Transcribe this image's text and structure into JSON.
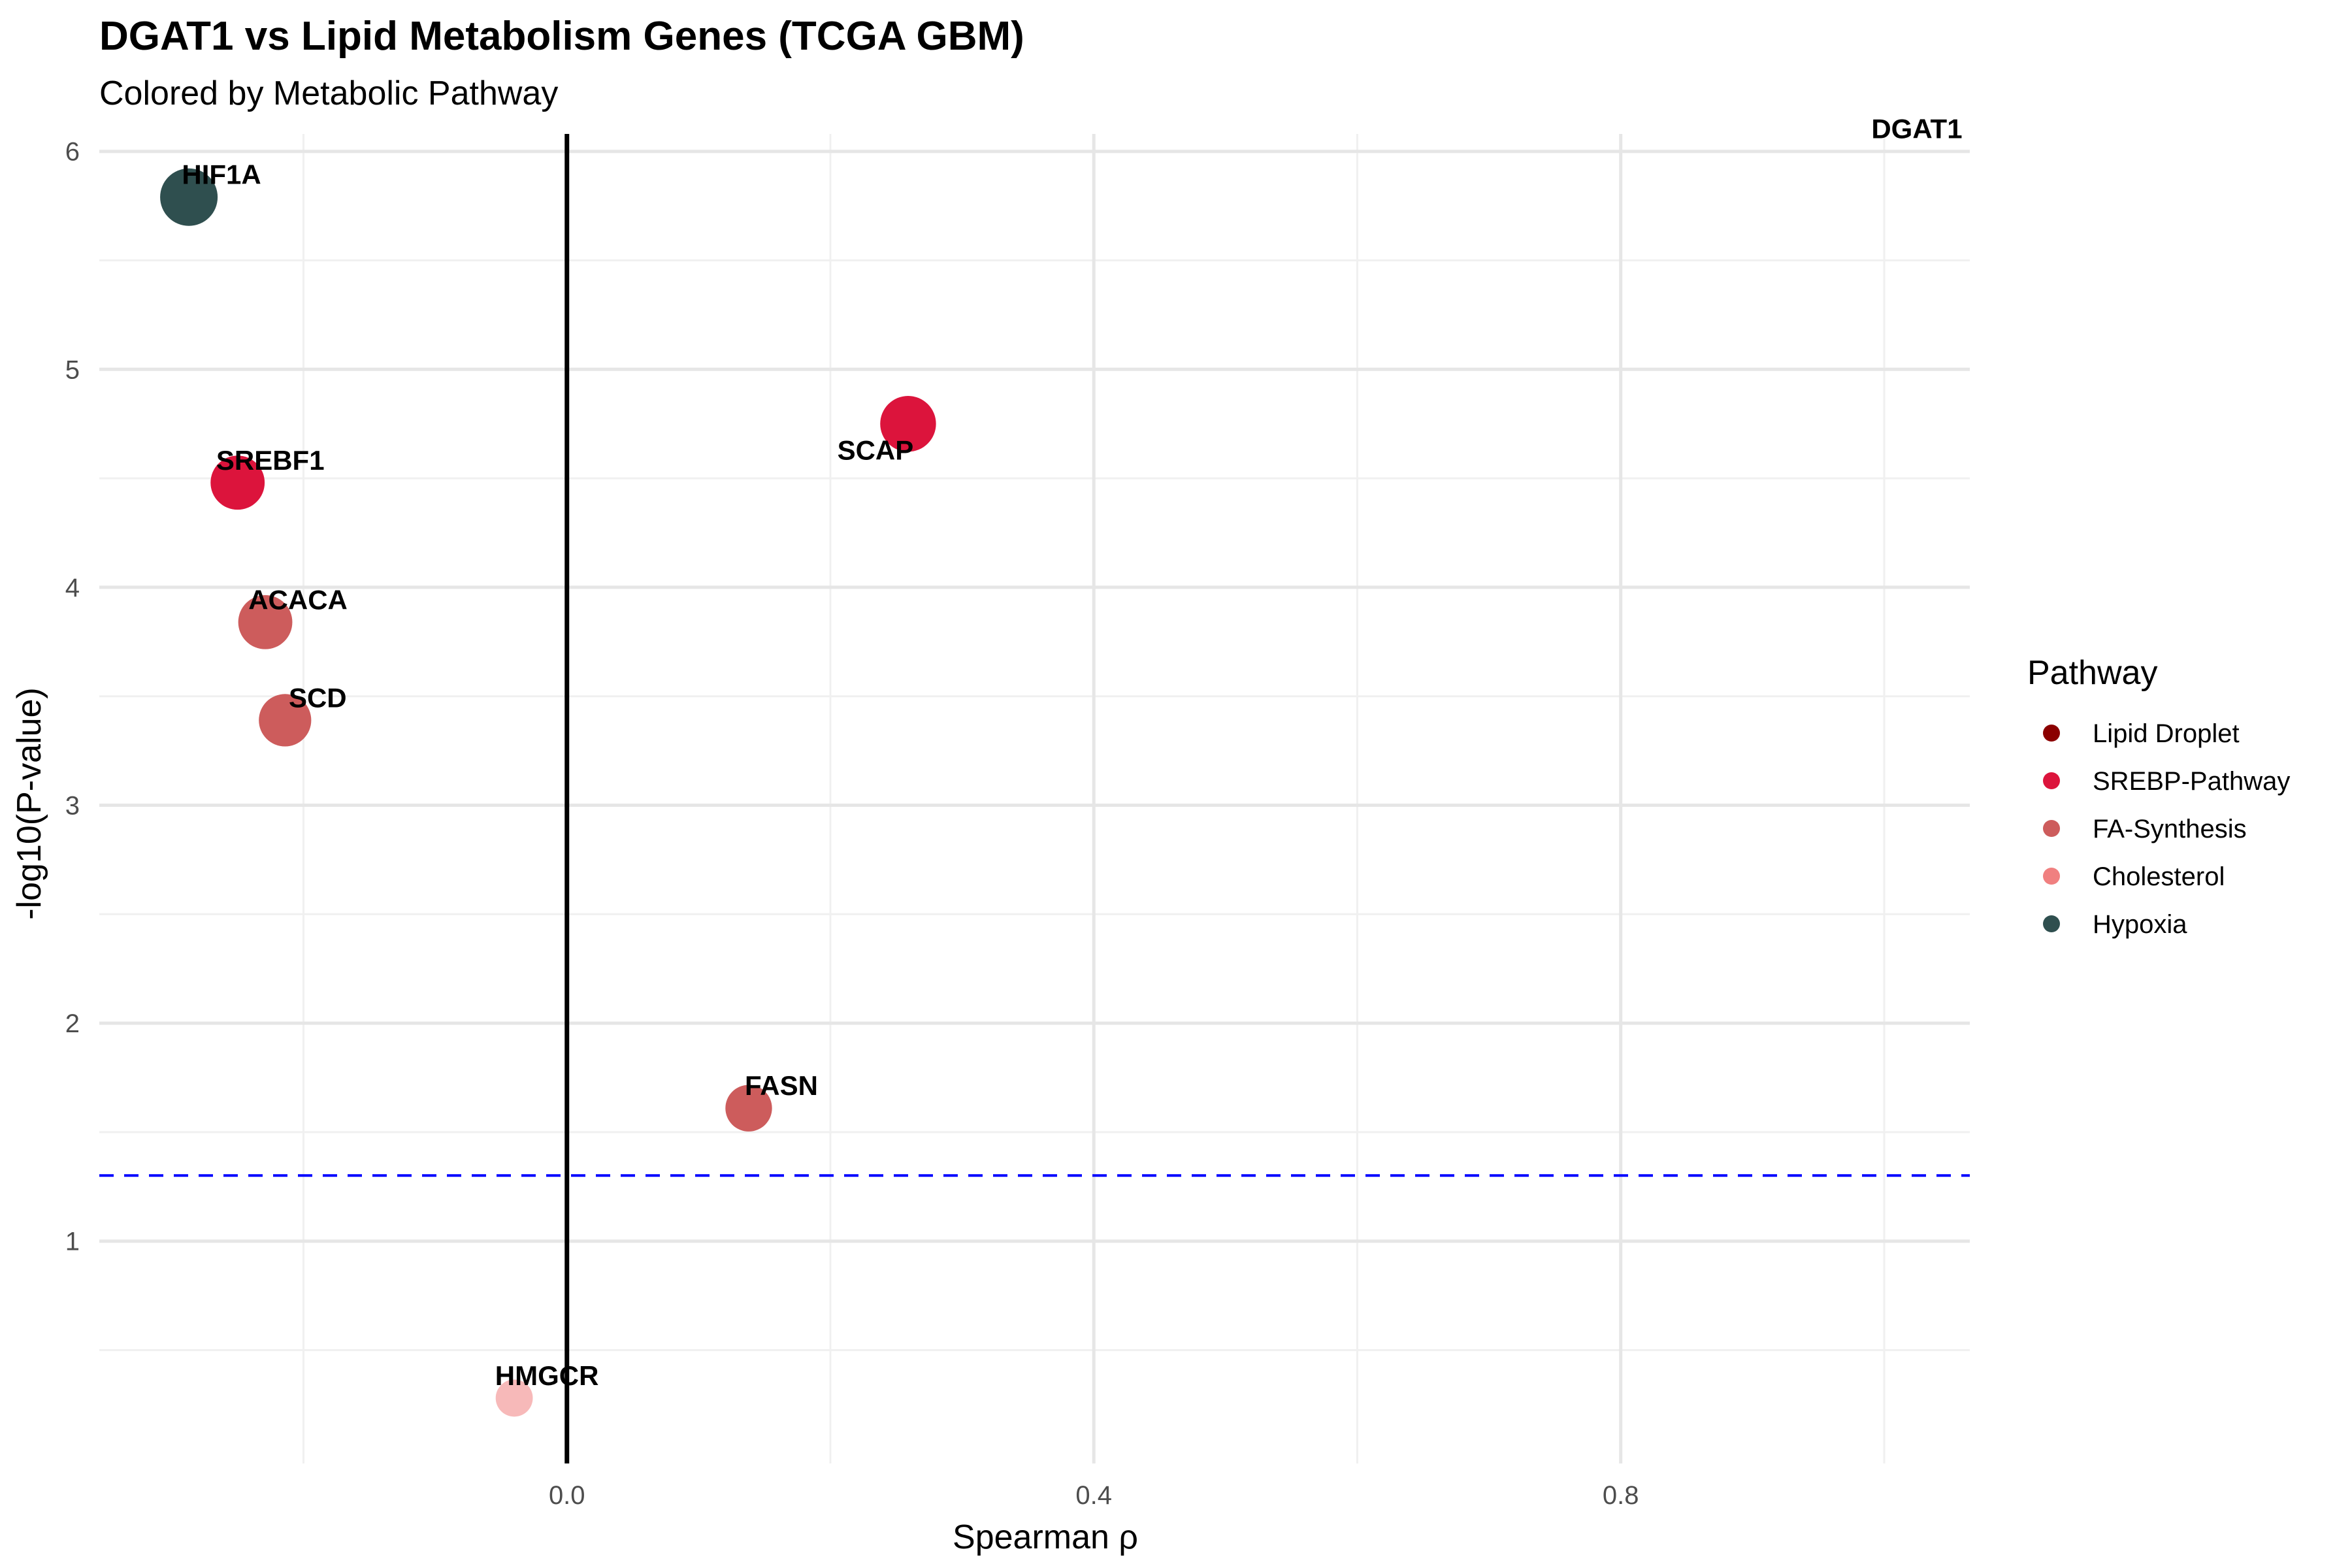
{
  "chart_data": {
    "type": "scatter",
    "title": "DGAT1 vs Lipid Metabolism Genes (TCGA GBM)",
    "subtitle": "Colored by Metabolic Pathway",
    "xlabel": "Spearman ρ",
    "ylabel": "-log10(P-value)",
    "xlim": [
      -0.355,
      1.065
    ],
    "ylim": [
      -0.02,
      6.08
    ],
    "x_ticks": [
      0.0,
      0.4,
      0.8
    ],
    "x_tick_labels": [
      "0.0",
      "0.4",
      "0.8"
    ],
    "y_ticks": [
      1,
      2,
      3,
      4,
      5,
      6
    ],
    "y_tick_labels": [
      "1",
      "2",
      "3",
      "4",
      "5",
      "6"
    ],
    "grid": true,
    "reference_lines": {
      "vertical_x": 0.0,
      "horizontal_y": 1.301
    },
    "legend": {
      "title": "Pathway",
      "placement": "right",
      "entries": [
        {
          "label": "Lipid Droplet",
          "color": "#8B0000"
        },
        {
          "label": "SREBP-Pathway",
          "color": "#DC143C"
        },
        {
          "label": "FA-Synthesis",
          "color": "#CD5C5C"
        },
        {
          "label": "Cholesterol",
          "color": "#F08080"
        },
        {
          "label": "Hypoxia",
          "color": "#2F4F4F"
        }
      ]
    },
    "points": [
      {
        "gene": "HIF1A",
        "x": -0.287,
        "y": 5.79,
        "pathway": "Hypoxia",
        "color": "#2F4F4F",
        "size": 1.0,
        "alpha": 1.0
      },
      {
        "gene": "SREBF1",
        "x": -0.25,
        "y": 4.48,
        "pathway": "SREBP-Pathway",
        "color": "#DC143C",
        "size": 0.9,
        "alpha": 1.0
      },
      {
        "gene": "ACACA",
        "x": -0.229,
        "y": 3.84,
        "pathway": "FA-Synthesis",
        "color": "#CD5C5C",
        "size": 0.9,
        "alpha": 1.0
      },
      {
        "gene": "SCD",
        "x": -0.214,
        "y": 3.39,
        "pathway": "FA-Synthesis",
        "color": "#CD5C5C",
        "size": 0.85,
        "alpha": 1.0
      },
      {
        "gene": "SCAP",
        "x": 0.259,
        "y": 4.75,
        "pathway": "SREBP-Pathway",
        "color": "#DC143C",
        "size": 0.95,
        "alpha": 1.0
      },
      {
        "gene": "FASN",
        "x": 0.138,
        "y": 1.61,
        "pathway": "FA-Synthesis",
        "color": "#CD5C5C",
        "size": 0.68,
        "alpha": 1.0
      },
      {
        "gene": "HMGCR",
        "x": -0.04,
        "y": 0.28,
        "pathway": "Cholesterol",
        "color": "#F08080",
        "size": 0.4,
        "alpha": 0.55
      },
      {
        "gene": "DGAT1",
        "x": 1.0,
        "y": 6.0,
        "pathway": "Lipid Droplet",
        "color": "#8B0000",
        "size": 0,
        "alpha": 0
      }
    ]
  }
}
